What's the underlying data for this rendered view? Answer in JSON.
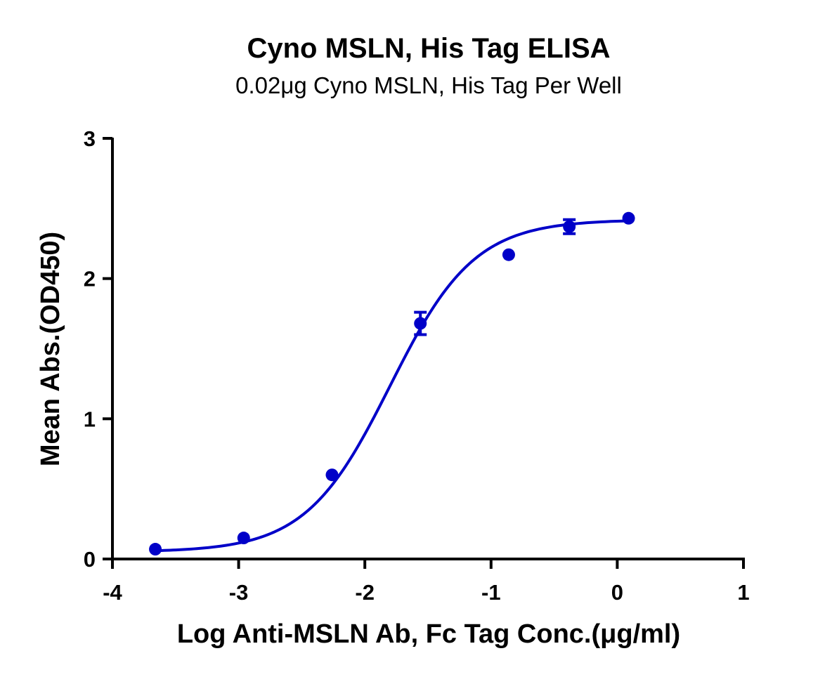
{
  "chart_data": {
    "type": "scatter",
    "title": "Cyno MSLN, His Tag ELISA",
    "subtitle": "0.02μg Cyno MSLN, His Tag Per Well",
    "xlabel": "Log Anti-MSLN Ab, Fc Tag Conc.(μg/ml)",
    "ylabel": "Mean Abs.(OD450)",
    "xlim": [
      -4,
      1
    ],
    "ylim": [
      0,
      3
    ],
    "xticks": [
      -4,
      -3,
      -2,
      -1,
      0,
      1
    ],
    "yticks": [
      0,
      1,
      2,
      3
    ],
    "grid": false,
    "color": "#0000c8",
    "series": [
      {
        "points": [
          {
            "x": -3.66,
            "y": 0.07,
            "err": 0
          },
          {
            "x": -2.96,
            "y": 0.15,
            "err": 0
          },
          {
            "x": -2.26,
            "y": 0.6,
            "err": 0
          },
          {
            "x": -1.56,
            "y": 1.68,
            "err": 0.08
          },
          {
            "x": -0.86,
            "y": 2.17,
            "err": 0
          },
          {
            "x": -0.38,
            "y": 2.37,
            "err": 0.05
          },
          {
            "x": 0.09,
            "y": 2.43,
            "err": 0
          }
        ],
        "fit": {
          "bottom": 0.05,
          "top": 2.42,
          "logEC50": -1.8,
          "hill": 1.3
        }
      }
    ]
  }
}
